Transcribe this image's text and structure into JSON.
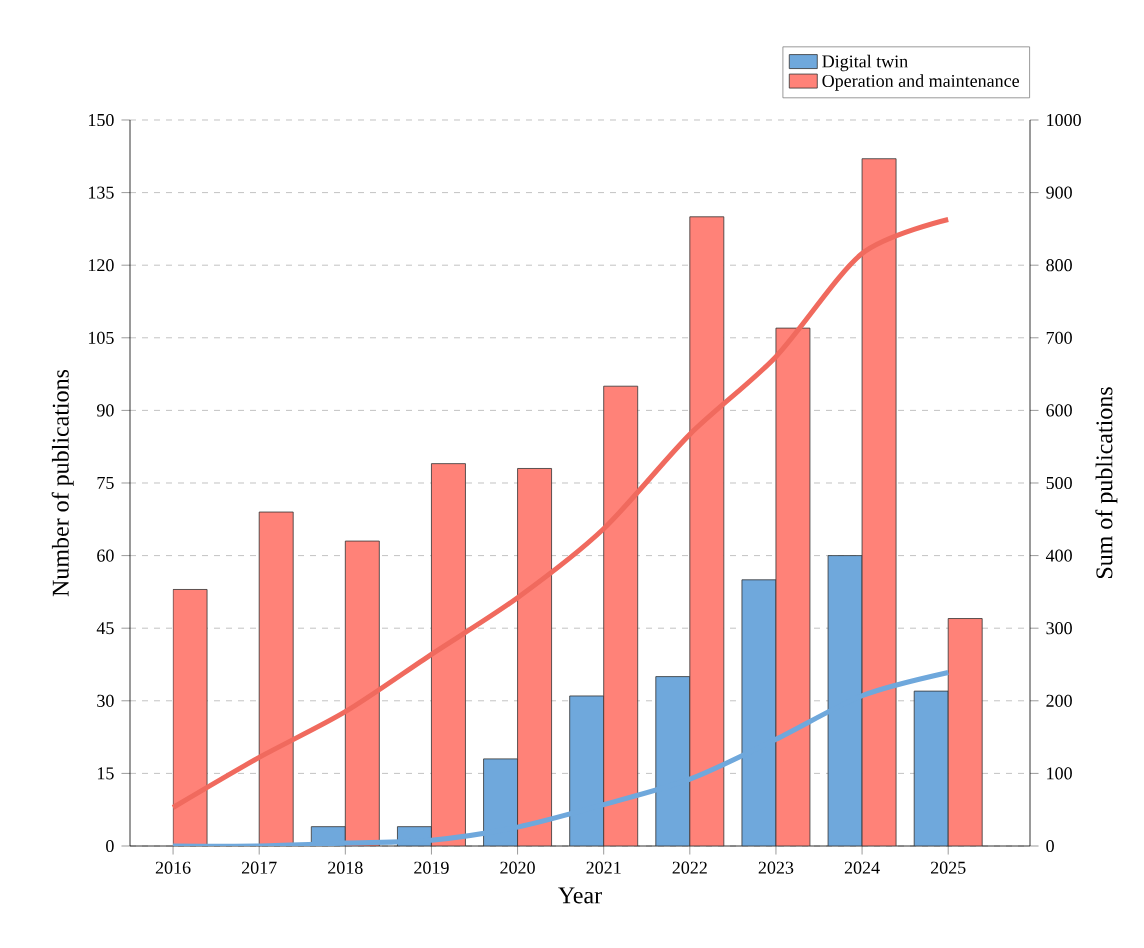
{
  "chart_data": {
    "type": "bar",
    "xlabel": "Year",
    "ylabel": "Number of publications",
    "y2label": "Sum of publications",
    "categories": [
      "2016",
      "2017",
      "2018",
      "2019",
      "2020",
      "2021",
      "2022",
      "2023",
      "2024",
      "2025"
    ],
    "series": [
      {
        "name": "Digital twin",
        "color": "#6fa8dc",
        "values": [
          0,
          0,
          4,
          4,
          18,
          31,
          35,
          55,
          60,
          32
        ]
      },
      {
        "name": "Operation and maintenance",
        "color": "#ff8278",
        "values": [
          53,
          69,
          63,
          79,
          78,
          95,
          130,
          107,
          142,
          47
        ]
      },
      {
        "type": "line",
        "axis": "y2",
        "color": "#f06a5e",
        "values": [
          53,
          122,
          185,
          264,
          342,
          437,
          567,
          674,
          816,
          863
        ]
      },
      {
        "type": "line",
        "axis": "y2",
        "color": "#6fa8dc",
        "values": [
          0,
          0,
          4,
          8,
          26,
          57,
          92,
          147,
          207,
          239
        ]
      }
    ],
    "ylim": [
      0,
      150
    ],
    "yticks": [
      0,
      15,
      30,
      45,
      60,
      75,
      90,
      105,
      120,
      135,
      150
    ],
    "y2lim": [
      0,
      1000
    ],
    "y2ticks": [
      0,
      100,
      200,
      300,
      400,
      500,
      600,
      700,
      800,
      900,
      1000
    ],
    "grid": "y",
    "legend": "top right"
  }
}
